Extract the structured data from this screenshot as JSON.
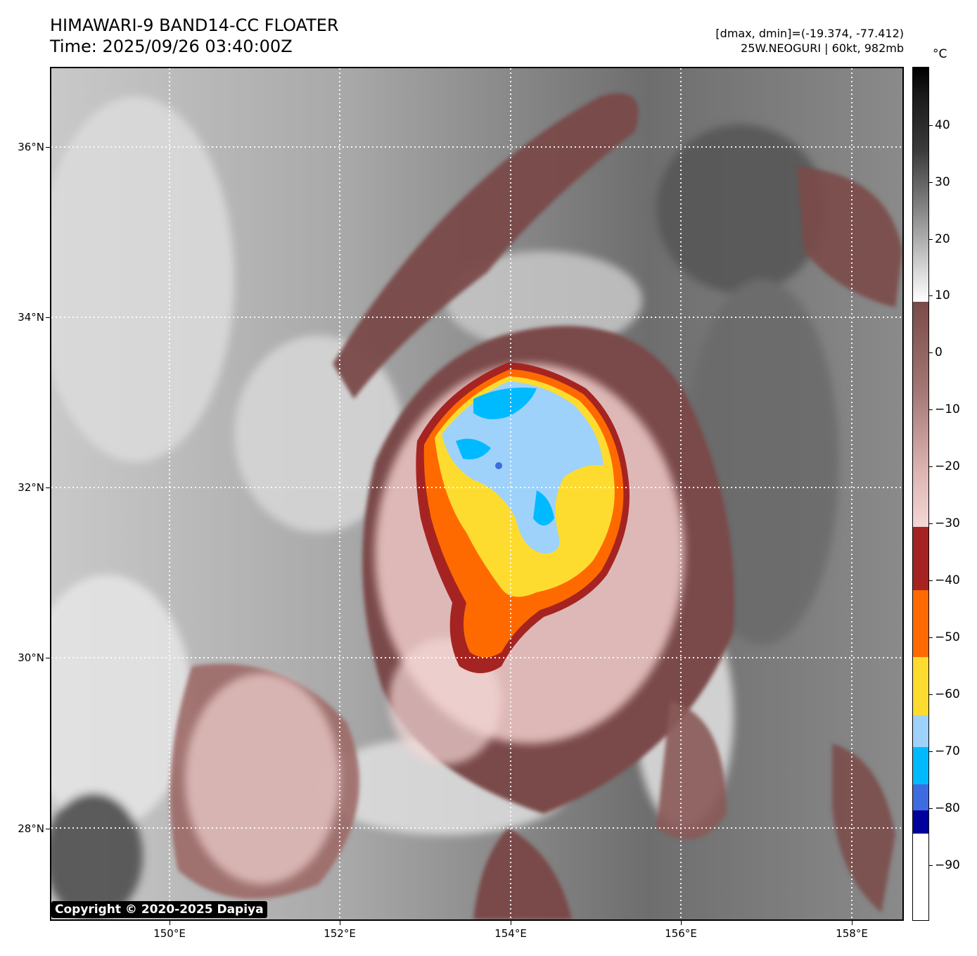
{
  "header": {
    "title": "HIMAWARI-9 BAND14-CC FLOATER",
    "time": "Time: 2025/09/26 03:40:00Z",
    "dminmax": "[dmax, dmin]=(-19.374, -77.412)",
    "storm": "25W.NEOGURI | 60kt, 982mb"
  },
  "map": {
    "lat_labels": [
      "36°N",
      "34°N",
      "32°N",
      "30°N",
      "28°N"
    ],
    "lon_labels": [
      "150°E",
      "152°E",
      "154°E",
      "156°E",
      "158°E"
    ],
    "copyright": "Copyright © 2020-2025 Dapiya"
  },
  "colorbar": {
    "unit": "°C",
    "ticks": [
      "40",
      "30",
      "20",
      "10",
      "0",
      "−10",
      "−20",
      "−30",
      "−40",
      "−50",
      "−60",
      "−70",
      "−80",
      "−90"
    ],
    "colors": {
      "warm_black": "#000000",
      "gray": "#808080",
      "white": "#ffffff",
      "brown": "#7a4a48",
      "pink": "#f3d7d6",
      "dark_red": "#a52422",
      "orange": "#ff6a00",
      "yellow": "#fddc2f",
      "light_blue": "#9ed2fb",
      "cyan": "#00baff",
      "royal_blue": "#3f6be0",
      "navy": "#00009c"
    }
  }
}
